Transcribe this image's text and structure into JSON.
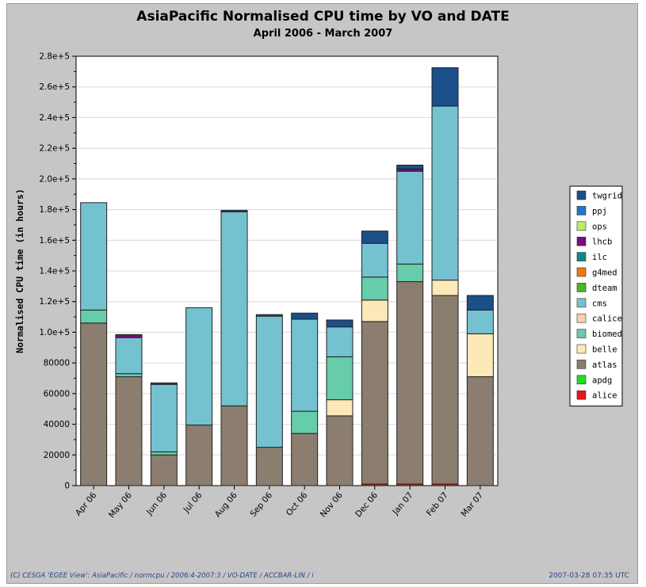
{
  "title": "AsiaPacific Normalised CPU time by VO and DATE",
  "subtitle": "April 2006 - March 2007",
  "footer": {
    "left": "(C) CESGA 'EGEE View': AsiaPacific / normcpu / 2006:4-2007:3 / VO-DATE / ACCBAR-LIN / i",
    "right": "2007-03-28 07:35 UTC"
  },
  "chart_data": {
    "type": "bar",
    "stacked": true,
    "title": "AsiaPacific Normalised CPU time by VO and DATE",
    "subtitle": "April 2006 - March 2007",
    "xlabel": "",
    "ylabel": "Normalised CPU time (in hours)",
    "ylim": [
      0,
      280000
    ],
    "ytick_values": [
      0,
      20000,
      40000,
      60000,
      80000,
      100000,
      120000,
      140000,
      160000,
      180000,
      200000,
      220000,
      240000,
      260000,
      280000
    ],
    "ytick_labels": [
      "0",
      "20000",
      "40000",
      "60000",
      "80000",
      "1.0e+5",
      "1.2e+5",
      "1.4e+5",
      "1.6e+5",
      "1.8e+5",
      "2.0e+5",
      "2.2e+5",
      "2.4e+5",
      "2.6e+5",
      "2.8e+5"
    ],
    "grid": true,
    "legend_position": "right",
    "categories": [
      "Apr 06",
      "May 06",
      "Jun 06",
      "Jul 06",
      "Aug 06",
      "Sep 06",
      "Oct 06",
      "Nov 06",
      "Dec 06",
      "Jan 07",
      "Feb 07",
      "Mar 07"
    ],
    "series": [
      {
        "name": "alice",
        "color": "#e8141c",
        "values": [
          0,
          0,
          0,
          0,
          0,
          0,
          0,
          0,
          1000,
          1000,
          1000,
          0
        ]
      },
      {
        "name": "apdg",
        "color": "#22dd22",
        "values": [
          0,
          0,
          0,
          0,
          0,
          0,
          0,
          0,
          0,
          0,
          0,
          0
        ]
      },
      {
        "name": "atlas",
        "color": "#8b7d70",
        "values": [
          106000,
          71000,
          20000,
          39500,
          52000,
          25000,
          34000,
          45500,
          106000,
          132000,
          123000,
          71000
        ]
      },
      {
        "name": "belle",
        "color": "#fde8b8",
        "values": [
          0,
          0,
          0,
          0,
          0,
          0,
          0,
          10500,
          14000,
          0,
          10000,
          28000
        ]
      },
      {
        "name": "biomed",
        "color": "#66ccaa",
        "values": [
          8500,
          2000,
          2000,
          0,
          0,
          0,
          14500,
          28000,
          15000,
          11500,
          0,
          0
        ]
      },
      {
        "name": "calice",
        "color": "#f8d0a8",
        "values": [
          0,
          0,
          0,
          0,
          0,
          0,
          0,
          0,
          0,
          0,
          0,
          0
        ]
      },
      {
        "name": "cms",
        "color": "#74c2d0",
        "values": [
          70000,
          23500,
          44000,
          76500,
          126500,
          85500,
          60000,
          19500,
          22000,
          60500,
          113500,
          15500
        ]
      },
      {
        "name": "dteam",
        "color": "#44bb22",
        "values": [
          0,
          0,
          0,
          0,
          0,
          0,
          0,
          0,
          0,
          0,
          0,
          0
        ]
      },
      {
        "name": "g4med",
        "color": "#ee7711",
        "values": [
          0,
          0,
          0,
          0,
          0,
          0,
          0,
          0,
          0,
          0,
          0,
          0
        ]
      },
      {
        "name": "ilc",
        "color": "#118888",
        "values": [
          0,
          0,
          0,
          0,
          0,
          0,
          0,
          0,
          0,
          0,
          0,
          0
        ]
      },
      {
        "name": "lhcb",
        "color": "#770e7a",
        "values": [
          0,
          2000,
          0,
          0,
          0,
          0,
          0,
          0,
          0,
          1500,
          0,
          0
        ]
      },
      {
        "name": "ops",
        "color": "#bbee66",
        "values": [
          0,
          0,
          0,
          0,
          0,
          0,
          0,
          0,
          0,
          0,
          0,
          0
        ]
      },
      {
        "name": "ppj",
        "color": "#2277cc",
        "values": [
          0,
          0,
          0,
          0,
          0,
          0,
          0,
          0,
          0,
          0,
          0,
          0
        ]
      },
      {
        "name": "twgrid",
        "color": "#1a4f8a",
        "values": [
          0,
          0,
          1000,
          0,
          1000,
          1000,
          4000,
          4500,
          8000,
          2500,
          25000,
          9500
        ]
      }
    ],
    "legend_order": [
      "twgrid",
      "ppj",
      "ops",
      "lhcb",
      "ilc",
      "g4med",
      "dteam",
      "cms",
      "calice",
      "biomed",
      "belle",
      "atlas",
      "apdg",
      "alice"
    ]
  }
}
